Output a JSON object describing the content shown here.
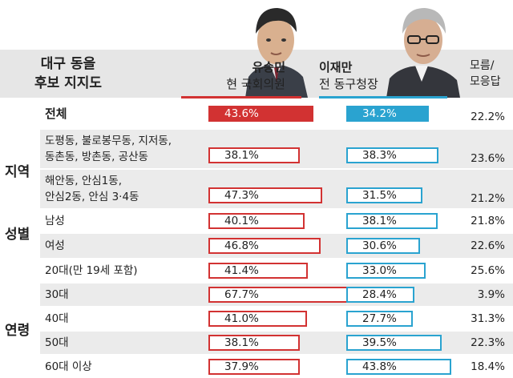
{
  "chart_data": {
    "type": "bar",
    "title": "대구 동을 후보 지지도",
    "title_lines": [
      "대구 동을",
      "후보 지지도"
    ],
    "candidates": [
      {
        "name": "유승민",
        "desc": "현 국회의원",
        "color": "#d23232"
      },
      {
        "name": "이재만",
        "desc": "전 동구청장",
        "color": "#2aa3d0"
      }
    ],
    "other_header_lines": [
      "모름/",
      "모응답"
    ],
    "groups": [
      {
        "label": "지역",
        "rows": [
          1,
          2
        ]
      },
      {
        "label": "성별",
        "rows": [
          3,
          4
        ]
      },
      {
        "label": "연령",
        "rows": [
          5,
          10
        ]
      }
    ],
    "categories": [
      {
        "lines": [
          "전체"
        ],
        "bold": true
      },
      {
        "lines": [
          "도평동, 불로봉무동, 지저동,",
          "동촌동, 방촌동, 공산동"
        ]
      },
      {
        "lines": [
          "해안동, 안심1동,",
          "안심2동, 안심 3·4동"
        ]
      },
      {
        "lines": [
          "남성"
        ]
      },
      {
        "lines": [
          "여성"
        ]
      },
      {
        "lines": [
          "20대(만 19세 포함)"
        ]
      },
      {
        "lines": [
          "30대"
        ]
      },
      {
        "lines": [
          "40대"
        ]
      },
      {
        "lines": [
          "50대"
        ]
      },
      {
        "lines": [
          "60대 이상"
        ]
      }
    ],
    "series": [
      {
        "name": "유승민",
        "values": [
          43.6,
          38.1,
          47.3,
          40.1,
          46.8,
          41.4,
          67.7,
          41.0,
          38.1,
          37.9
        ],
        "labels": [
          "43.6%",
          "38.1%",
          "47.3%",
          "40.1%",
          "46.8%",
          "41.4%",
          "67.7%",
          "41.0%",
          "38.1%",
          "37.9%"
        ]
      },
      {
        "name": "이재만",
        "values": [
          34.2,
          38.3,
          31.5,
          38.1,
          30.6,
          33.0,
          28.4,
          27.7,
          39.5,
          43.8
        ],
        "labels": [
          "34.2%",
          "38.3%",
          "31.5%",
          "38.1%",
          "30.6%",
          "33.0%",
          "28.4%",
          "27.7%",
          "39.5%",
          "43.8%"
        ]
      },
      {
        "name": "모름/모응답",
        "values": [
          22.2,
          23.6,
          21.2,
          21.8,
          22.6,
          25.6,
          3.9,
          31.3,
          22.3,
          18.4
        ],
        "labels": [
          "22.2%",
          "23.6%",
          "21.2%",
          "21.8%",
          "22.6%",
          "25.6%",
          "3.9%",
          "31.3%",
          "22.3%",
          "18.4%"
        ]
      }
    ],
    "icons": [
      "candidate-1-photo",
      "candidate-2-photo"
    ]
  }
}
